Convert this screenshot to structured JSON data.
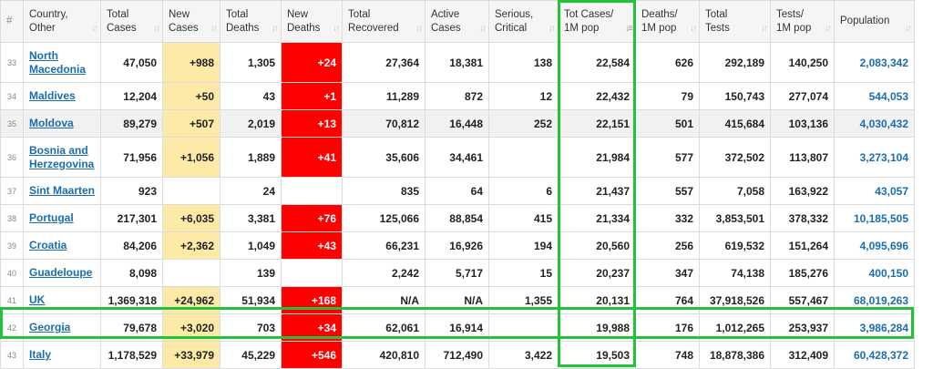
{
  "headers": [
    {
      "key": "idx",
      "line1": "#",
      "line2": "",
      "sort": false
    },
    {
      "key": "country",
      "line1": "Country,",
      "line2": "Other",
      "sort": true
    },
    {
      "key": "total_cases",
      "line1": "Total",
      "line2": "Cases",
      "sort": true
    },
    {
      "key": "new_cases",
      "line1": "New",
      "line2": "Cases",
      "sort": true
    },
    {
      "key": "total_deaths",
      "line1": "Total",
      "line2": "Deaths",
      "sort": true
    },
    {
      "key": "new_deaths",
      "line1": "New",
      "line2": "Deaths",
      "sort": true
    },
    {
      "key": "total_recovered",
      "line1": "Total",
      "line2": "Recovered",
      "sort": true
    },
    {
      "key": "active_cases",
      "line1": "Active",
      "line2": "Cases",
      "sort": true
    },
    {
      "key": "serious",
      "line1": "Serious,",
      "line2": "Critical",
      "sort": true
    },
    {
      "key": "tot_cases_1m",
      "line1": "Tot Cases/",
      "line2": "1M pop",
      "sort": true,
      "active": true
    },
    {
      "key": "deaths_1m",
      "line1": "Deaths/",
      "line2": "1M pop",
      "sort": true
    },
    {
      "key": "total_tests",
      "line1": "Total",
      "line2": "Tests",
      "sort": true
    },
    {
      "key": "tests_1m",
      "line1": "Tests/",
      "line2": "1M pop",
      "sort": true
    },
    {
      "key": "population",
      "line1": "Population",
      "line2": "",
      "sort": true
    }
  ],
  "rows": [
    {
      "idx": "33",
      "country": [
        "North",
        "Macedonia"
      ],
      "total_cases": "47,050",
      "new_cases": "+988",
      "total_deaths": "1,305",
      "new_deaths": "+24",
      "total_recovered": "27,364",
      "active_cases": "18,381",
      "serious": "138",
      "tot_cases_1m": "22,584",
      "deaths_1m": "626",
      "total_tests": "292,189",
      "tests_1m": "140,250",
      "population": "2,083,342"
    },
    {
      "idx": "34",
      "country": [
        "Maldives"
      ],
      "total_cases": "12,204",
      "new_cases": "+50",
      "total_deaths": "43",
      "new_deaths": "+1",
      "total_recovered": "11,289",
      "active_cases": "872",
      "serious": "12",
      "tot_cases_1m": "22,432",
      "deaths_1m": "79",
      "total_tests": "150,743",
      "tests_1m": "277,074",
      "population": "544,053"
    },
    {
      "idx": "35",
      "country": [
        "Moldova"
      ],
      "total_cases": "89,279",
      "new_cases": "+507",
      "total_deaths": "2,019",
      "new_deaths": "+13",
      "total_recovered": "70,812",
      "active_cases": "16,448",
      "serious": "252",
      "tot_cases_1m": "22,151",
      "deaths_1m": "501",
      "total_tests": "415,684",
      "tests_1m": "103,136",
      "population": "4,030,432"
    },
    {
      "idx": "36",
      "country": [
        "Bosnia and",
        "Herzegovina"
      ],
      "total_cases": "71,956",
      "new_cases": "+1,056",
      "total_deaths": "1,889",
      "new_deaths": "+41",
      "total_recovered": "35,606",
      "active_cases": "34,461",
      "serious": "",
      "tot_cases_1m": "21,984",
      "deaths_1m": "577",
      "total_tests": "372,502",
      "tests_1m": "113,807",
      "population": "3,273,104"
    },
    {
      "idx": "37",
      "country": [
        "Sint Maarten"
      ],
      "total_cases": "923",
      "new_cases": "",
      "total_deaths": "24",
      "new_deaths": "",
      "total_recovered": "835",
      "active_cases": "64",
      "serious": "6",
      "tot_cases_1m": "21,437",
      "deaths_1m": "557",
      "total_tests": "7,058",
      "tests_1m": "163,922",
      "population": "43,057"
    },
    {
      "idx": "38",
      "country": [
        "Portugal"
      ],
      "total_cases": "217,301",
      "new_cases": "+6,035",
      "total_deaths": "3,381",
      "new_deaths": "+76",
      "total_recovered": "125,066",
      "active_cases": "88,854",
      "serious": "415",
      "tot_cases_1m": "21,334",
      "deaths_1m": "332",
      "total_tests": "3,853,501",
      "tests_1m": "378,332",
      "population": "10,185,505"
    },
    {
      "idx": "39",
      "country": [
        "Croatia"
      ],
      "total_cases": "84,206",
      "new_cases": "+2,362",
      "total_deaths": "1,049",
      "new_deaths": "+43",
      "total_recovered": "66,231",
      "active_cases": "16,926",
      "serious": "194",
      "tot_cases_1m": "20,560",
      "deaths_1m": "256",
      "total_tests": "619,532",
      "tests_1m": "151,264",
      "population": "4,095,696"
    },
    {
      "idx": "40",
      "country": [
        "Guadeloupe"
      ],
      "total_cases": "8,098",
      "new_cases": "",
      "total_deaths": "139",
      "new_deaths": "",
      "total_recovered": "2,242",
      "active_cases": "5,717",
      "serious": "15",
      "tot_cases_1m": "20,237",
      "deaths_1m": "347",
      "total_tests": "74,138",
      "tests_1m": "185,276",
      "population": "400,150"
    },
    {
      "idx": "41",
      "country": [
        "UK"
      ],
      "total_cases": "1,369,318",
      "new_cases": "+24,962",
      "total_deaths": "51,934",
      "new_deaths": "+168",
      "total_recovered": "N/A",
      "active_cases": "N/A",
      "serious": "1,355",
      "tot_cases_1m": "20,131",
      "deaths_1m": "764",
      "total_tests": "37,918,526",
      "tests_1m": "557,467",
      "population": "68,019,263"
    },
    {
      "idx": "42",
      "country": [
        "Georgia"
      ],
      "total_cases": "79,678",
      "new_cases": "+3,020",
      "total_deaths": "703",
      "new_deaths": "+34",
      "total_recovered": "62,061",
      "active_cases": "16,914",
      "serious": "",
      "tot_cases_1m": "19,988",
      "deaths_1m": "176",
      "total_tests": "1,012,265",
      "tests_1m": "253,937",
      "population": "3,986,284"
    },
    {
      "idx": "43",
      "country": [
        "Italy"
      ],
      "total_cases": "1,178,529",
      "new_cases": "+33,979",
      "total_deaths": "45,229",
      "new_deaths": "+546",
      "total_recovered": "420,810",
      "active_cases": "712,490",
      "serious": "3,422",
      "tot_cases_1m": "19,503",
      "deaths_1m": "748",
      "total_tests": "18,878,386",
      "tests_1m": "312,409",
      "population": "60,428,372"
    }
  ],
  "colors": {
    "highlight": "#22c33a",
    "new_cases_bg": "#fdeaa7",
    "new_deaths_bg": "#ff0000",
    "link": "#1a6dae"
  }
}
